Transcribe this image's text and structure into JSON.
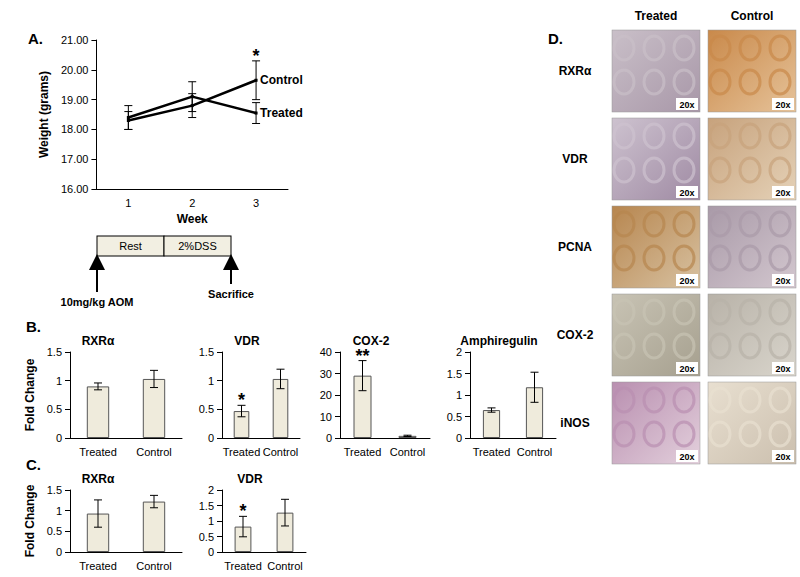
{
  "panel_labels": [
    "A.",
    "B.",
    "C.",
    "D."
  ],
  "chart_data": [
    {
      "type": "line",
      "ylabel": "Weight (grams)",
      "xlabel": "Week",
      "categories": [
        "1",
        "2",
        "3"
      ],
      "series": [
        {
          "name": "Control",
          "color": "#000000",
          "values": [
            18.3,
            18.8,
            19.65
          ],
          "errors": [
            0.3,
            0.4,
            0.65
          ]
        },
        {
          "name": "Treated",
          "color": "#000000",
          "values": [
            18.4,
            19.1,
            18.55
          ],
          "errors": [
            0.4,
            0.5,
            0.35
          ]
        }
      ],
      "annotations": [
        {
          "text": "*",
          "series": "Control",
          "category": "3"
        }
      ],
      "ylim": [
        16,
        21
      ],
      "yticks": [
        {
          "value": 16,
          "label": "16.00"
        },
        {
          "value": 17,
          "label": "17.00"
        },
        {
          "value": 18,
          "label": "18.00"
        },
        {
          "value": 19,
          "label": "19.00"
        },
        {
          "value": 20,
          "label": "20.00"
        },
        {
          "value": 21,
          "label": "21.00"
        }
      ],
      "grid": false
    },
    {
      "type": "bar",
      "title": "RXRα",
      "ylabel": "Fold Change",
      "categories": [
        "Treated",
        "Control"
      ],
      "values": [
        0.9,
        1.03
      ],
      "errors": [
        0.06,
        0.15
      ],
      "color": "#efebdc",
      "annotations": [],
      "ylim": [
        0,
        1.5
      ],
      "yticks": [
        0,
        0.5,
        1,
        1.5
      ],
      "grid": false
    },
    {
      "type": "bar",
      "title": "VDR",
      "categories": [
        "Treated",
        "Control"
      ],
      "values": [
        0.47,
        1.03
      ],
      "errors": [
        0.1,
        0.17
      ],
      "color": "#efebdc",
      "annotations": [
        {
          "text": "*",
          "category": "Treated"
        }
      ],
      "ylim": [
        0,
        1.5
      ],
      "yticks": [
        0,
        0.5,
        1,
        1.5
      ],
      "grid": false
    },
    {
      "type": "bar",
      "title": "COX-2",
      "categories": [
        "Treated",
        "Control"
      ],
      "values": [
        29,
        1.0
      ],
      "errors": [
        7,
        0.3
      ],
      "color": "#efebdc",
      "annotations": [
        {
          "text": "**",
          "category": "Treated"
        }
      ],
      "ylim": [
        0,
        40
      ],
      "yticks": [
        0,
        10,
        20,
        30,
        40
      ],
      "grid": false
    },
    {
      "type": "bar",
      "title": "Amphiregulin",
      "categories": [
        "Treated",
        "Control"
      ],
      "values": [
        0.65,
        1.18
      ],
      "errors": [
        0.05,
        0.35
      ],
      "color": "#efebdc",
      "annotations": [],
      "ylim": [
        0,
        2
      ],
      "yticks": [
        0,
        0.5,
        1,
        1.5,
        2
      ],
      "grid": false
    },
    {
      "type": "bar",
      "title": "RXRα",
      "ylabel": "Fold Change",
      "categories": [
        "Treated",
        "Control"
      ],
      "values": [
        0.93,
        1.22
      ],
      "errors": [
        0.33,
        0.15
      ],
      "color": "#efebdc",
      "annotations": [],
      "ylim": [
        0,
        1.5
      ],
      "yticks": [
        0,
        0.5,
        1,
        1.5
      ],
      "grid": false
    },
    {
      "type": "bar",
      "title": "VDR",
      "categories": [
        "Treated",
        "Control"
      ],
      "values": [
        0.82,
        1.27
      ],
      "errors": [
        0.33,
        0.43
      ],
      "color": "#efebdc",
      "annotations": [
        {
          "text": "*",
          "category": "Treated"
        }
      ],
      "ylim": [
        0,
        2
      ],
      "yticks": [
        0,
        0.5,
        1,
        1.5,
        2
      ],
      "grid": false
    }
  ],
  "timeline": {
    "boxes": [
      "Rest",
      "2%DSS"
    ],
    "start": "10mg/kg AOM",
    "end": "Sacrifice"
  },
  "histology": {
    "columns": [
      "Treated",
      "Control"
    ],
    "rows": [
      "RXRα",
      "VDR",
      "PCNA",
      "COX-2",
      "iNOS"
    ],
    "magnification": "20x"
  }
}
